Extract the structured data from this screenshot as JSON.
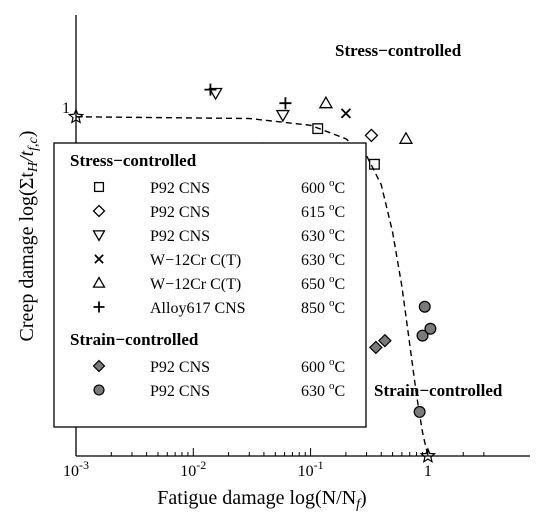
{
  "chart_data": {
    "type": "scatter",
    "xscale": "log",
    "xlim": [
      0.001,
      3.2
    ],
    "ylim": [
      0,
      1.3
    ],
    "xlabel": "Fatigue damage log(N/N",
    "xlabel_sub": "f",
    "xlabel_close": ")",
    "ylabel": "Creep damage log(Σt",
    "ylabel_sub1": "H",
    "ylabel_mid": "/t",
    "ylabel_sub2": "f,c",
    "ylabel_close": ")",
    "x_ticks": [
      {
        "value": 0.001,
        "base": "10",
        "exp": "-3"
      },
      {
        "value": 0.01,
        "base": "10",
        "exp": "-2"
      },
      {
        "value": 0.1,
        "base": "10",
        "exp": "-1"
      },
      {
        "value": 1,
        "base": "1",
        "exp": ""
      }
    ],
    "y_ticks": [
      {
        "value": 1,
        "label": "1"
      },
      {
        "value": 0.666667,
        "label": ""
      },
      {
        "value": 0.333333,
        "label": ""
      }
    ],
    "region_labels": {
      "stress": "Stress−controlled",
      "strain": "Strain−controlled"
    },
    "envelope": {
      "style": "dashed",
      "endpoint_marker": "star",
      "points": [
        [
          0.001,
          1.0
        ],
        [
          0.03,
          0.995
        ],
        [
          0.1,
          0.975
        ],
        [
          0.2,
          0.935
        ],
        [
          0.3,
          0.885
        ],
        [
          0.4,
          0.8
        ],
        [
          0.5,
          0.66
        ],
        [
          0.6,
          0.5
        ],
        [
          0.7,
          0.33
        ],
        [
          0.8,
          0.18
        ],
        [
          0.9,
          0.07
        ],
        [
          1.0,
          0.0
        ]
      ]
    },
    "legend": {
      "groups": [
        {
          "heading": "Stress−controlled",
          "entries": [
            {
              "marker": "square",
              "label": "P92 CNS",
              "temp": "600",
              "unit": "oC"
            },
            {
              "marker": "diamond",
              "label": "P92 CNS",
              "temp": "615",
              "unit": "oC"
            },
            {
              "marker": "tri-down",
              "label": "P92 CNS",
              "temp": "630",
              "unit": "oC"
            },
            {
              "marker": "x",
              "label": "W−12Cr C(T)",
              "temp": "630",
              "unit": "oC"
            },
            {
              "marker": "tri-up",
              "label": "W−12Cr C(T)",
              "temp": "650",
              "unit": "oC"
            },
            {
              "marker": "plus",
              "label": "Alloy617 CNS",
              "temp": "850",
              "unit": "oC"
            }
          ]
        },
        {
          "heading": "Strain−controlled",
          "entries": [
            {
              "marker": "diamond-filled",
              "label": "P92 CNS",
              "temp": "600",
              "unit": "oC"
            },
            {
              "marker": "circle-filled",
              "label": "P92 CNS",
              "temp": "630",
              "unit": "oC"
            }
          ]
        }
      ]
    },
    "series": [
      {
        "marker": "square",
        "points": [
          [
            0.115,
            0.965
          ],
          [
            0.35,
            0.86
          ]
        ]
      },
      {
        "marker": "diamond",
        "points": [
          [
            0.04,
            0.905
          ],
          [
            0.33,
            0.945
          ]
        ]
      },
      {
        "marker": "tri-down",
        "points": [
          [
            0.0155,
            1.07
          ],
          [
            0.058,
            1.005
          ]
        ]
      },
      {
        "marker": "x",
        "points": [
          [
            0.2,
            1.01
          ]
        ]
      },
      {
        "marker": "tri-up",
        "points": [
          [
            0.135,
            1.04
          ],
          [
            0.65,
            0.935
          ]
        ]
      },
      {
        "marker": "plus",
        "points": [
          [
            0.014,
            1.08
          ],
          [
            0.061,
            1.04
          ]
        ]
      },
      {
        "marker": "diamond-filled",
        "points": [
          [
            0.36,
            0.32
          ],
          [
            0.43,
            0.34
          ]
        ]
      },
      {
        "marker": "circle-filled",
        "points": [
          [
            0.94,
            0.44
          ],
          [
            0.9,
            0.355
          ],
          [
            1.05,
            0.375
          ],
          [
            0.85,
            0.13
          ]
        ]
      }
    ],
    "colors": {
      "filled_marker": "#7a7a7a",
      "line": "#000000"
    }
  }
}
